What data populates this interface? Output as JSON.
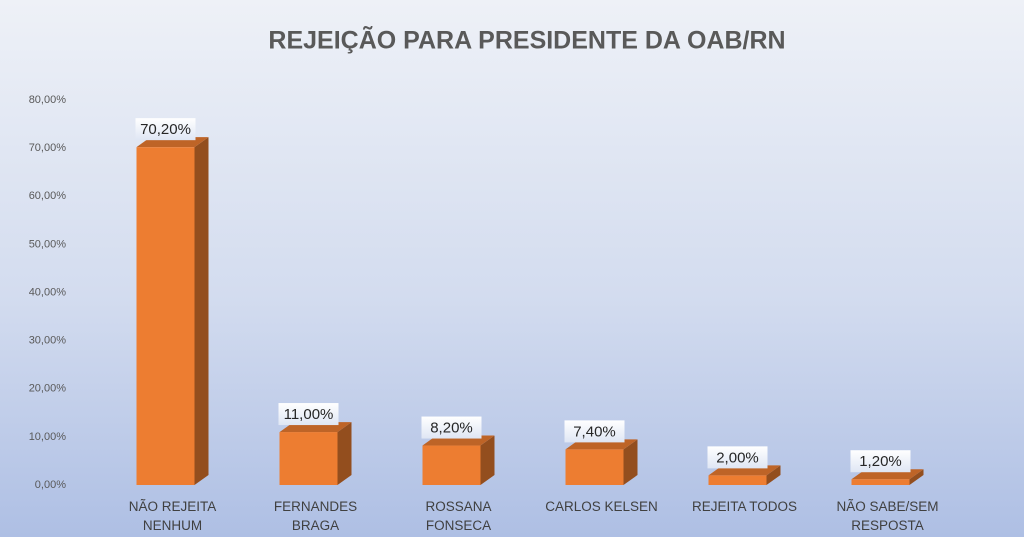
{
  "chart_data": {
    "type": "bar3d",
    "title": "REJEIÇÃO PARA PRESIDENTE DA OAB/RN",
    "categories": [
      "NÃO REJEITA NENHUM",
      "FERNANDES BRAGA",
      "ROSSANA FONSECA",
      "CARLOS KELSEN",
      "REJEITA TODOS",
      "NÃO SABE/SEM RESPOSTA"
    ],
    "values": [
      70.2,
      11.0,
      8.2,
      7.4,
      2.0,
      1.2
    ],
    "value_labels": [
      "70,20%",
      "11,00%",
      "8,20%",
      "7,40%",
      "2,00%",
      "1,20%"
    ],
    "color": "#ed7d31",
    "ylim": [
      0,
      80
    ],
    "yticks": [
      {
        "value": 0,
        "label": "0,00%"
      },
      {
        "value": 10,
        "label": "10,00%"
      },
      {
        "value": 20,
        "label": "20,00%"
      },
      {
        "value": 30,
        "label": "30,00%"
      },
      {
        "value": 40,
        "label": "40,00%"
      },
      {
        "value": 50,
        "label": "50,00%"
      },
      {
        "value": 60,
        "label": "60,00%"
      },
      {
        "value": 70,
        "label": "70,00%"
      },
      {
        "value": 80,
        "label": "80,00%"
      }
    ]
  }
}
